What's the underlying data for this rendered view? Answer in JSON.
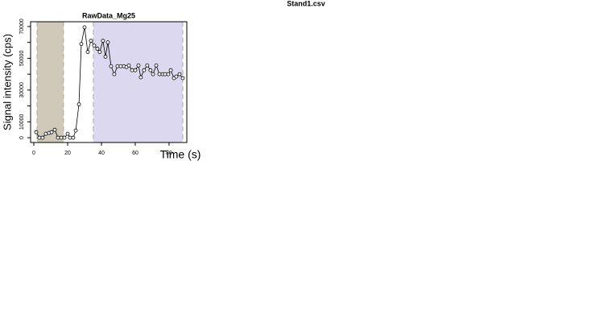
{
  "header": {
    "file": "Stand1.csv"
  },
  "chart_data": {
    "type": "line",
    "title": "RawData_Mg25",
    "xlabel": "Time (s)",
    "ylabel": "Signal intensity (cps)",
    "x": [
      1.4,
      3.3,
      5.2,
      7.1,
      9,
      10.5,
      12.4,
      14.3,
      16.2,
      18.1,
      20,
      21.4,
      23.3,
      24.8,
      26.7,
      28.1,
      30,
      31.9,
      33.8,
      35.7,
      37.6,
      39,
      40.9,
      42.4,
      43.8,
      45.7,
      47.6,
      49.5,
      51.4,
      53.3,
      54.8,
      56.2,
      58.1,
      60,
      61.9,
      63.3,
      65.2,
      67.1,
      69,
      70.5,
      72.4,
      74.3,
      76.2,
      77.6,
      79.5,
      81,
      82.9,
      84.3,
      86.2,
      88.1
    ],
    "series": [
      {
        "color": "#000000",
        "values": [
          3500,
          0,
          0,
          2500,
          3000,
          3500,
          5000,
          0,
          0,
          0,
          2500,
          0,
          0,
          4500,
          21000,
          59000,
          69500,
          54000,
          61000,
          58000,
          56000,
          54000,
          61000,
          51000,
          60000,
          45000,
          40000,
          45000,
          45000,
          45000,
          44500,
          45500,
          42500,
          42500,
          45500,
          38000,
          42500,
          45500,
          42500,
          40000,
          45500,
          40000,
          40000,
          40000,
          40000,
          42500,
          37500,
          38500,
          40000,
          37500
        ]
      }
    ],
    "regions": [
      {
        "from": 1.9,
        "to": 17.6,
        "color": "#d0c8b8"
      },
      {
        "from": 35.2,
        "to": 88.1,
        "color": "#dcd8f0"
      }
    ],
    "xlim": [
      -1.9,
      90.5
    ],
    "ylim": [
      -3000,
      73000
    ],
    "xticks": [
      0,
      20,
      40,
      60,
      80
    ],
    "yticks": [
      0,
      10000,
      30000,
      50000,
      70000
    ],
    "yminor_ticks": [
      20000,
      40000,
      60000
    ]
  }
}
